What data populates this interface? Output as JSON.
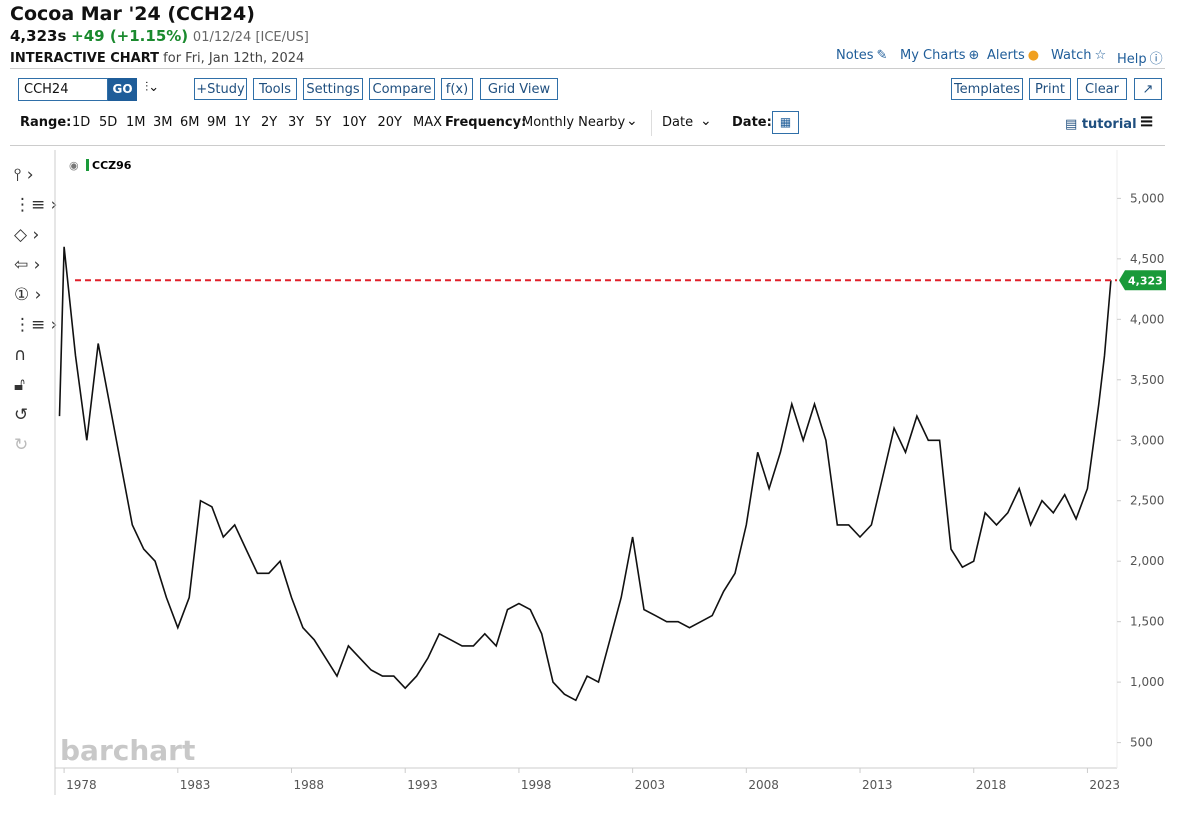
{
  "header": {
    "title": "Cocoa Mar '24 (CCH24)",
    "price": "4,323s",
    "change": "+49 (+1.15%)",
    "quote_info": "01/12/24 [ICE/US]",
    "chart_label": "INTERACTIVE CHART",
    "chart_date": "for Fri, Jan 12th, 2024"
  },
  "top_links": [
    "Notes",
    "My Charts",
    "Alerts",
    "Watch",
    "Help"
  ],
  "toolbar": {
    "symbol": "CCH24",
    "go": "GO",
    "buttons": [
      "+Study",
      "Tools",
      "Settings",
      "Compare",
      "f(x)",
      "Grid View"
    ],
    "right_buttons": [
      "Templates",
      "Print",
      "Clear"
    ]
  },
  "range": {
    "label": "Range:",
    "options": [
      "1D",
      "5D",
      "1M",
      "3M",
      "6M",
      "9M",
      "1Y",
      "2Y",
      "3Y",
      "5Y",
      "10Y",
      "20Y",
      "MAX"
    ]
  },
  "frequency": {
    "label": "Frequency:",
    "value": "Monthly Nearby"
  },
  "date_mode": "Date",
  "date_label": "Date:",
  "tutorial": "tutorial",
  "chart_data": {
    "type": "line",
    "watermark": "barchart",
    "series": [
      {
        "name": "CCZ96",
        "color": "#111111",
        "x": [
          1977.8,
          1978.0,
          1978.5,
          1979.0,
          1979.5,
          1980.0,
          1980.5,
          1981.0,
          1981.5,
          1982.0,
          1982.5,
          1983.0,
          1983.5,
          1984.0,
          1984.5,
          1985.0,
          1985.5,
          1986.0,
          1986.5,
          1987.0,
          1987.5,
          1988.0,
          1988.5,
          1989.0,
          1989.5,
          1990.0,
          1990.5,
          1991.0,
          1991.5,
          1992.0,
          1992.5,
          1993.0,
          1993.5,
          1994.0,
          1994.5,
          1995.0,
          1995.5,
          1996.0,
          1996.5,
          1997.0,
          1997.5,
          1998.0,
          1998.5,
          1999.0,
          1999.5,
          2000.0,
          2000.5,
          2001.0,
          2001.5,
          2002.0,
          2002.5,
          2003.0,
          2003.5,
          2004.0,
          2004.5,
          2005.0,
          2005.5,
          2006.0,
          2006.5,
          2007.0,
          2007.5,
          2008.0,
          2008.5,
          2009.0,
          2009.5,
          2010.0,
          2010.5,
          2011.0,
          2011.5,
          2012.0,
          2012.5,
          2013.0,
          2013.5,
          2014.0,
          2014.5,
          2015.0,
          2015.5,
          2016.0,
          2016.5,
          2017.0,
          2017.5,
          2018.0,
          2018.5,
          2019.0,
          2019.5,
          2020.0,
          2020.5,
          2021.0,
          2021.5,
          2022.0,
          2022.5,
          2023.0,
          2023.5,
          2023.75,
          2024.03
        ],
        "values": [
          3200,
          4600,
          3700,
          3000,
          3800,
          3300,
          2800,
          2300,
          2100,
          2000,
          1700,
          1450,
          1700,
          2500,
          2450,
          2200,
          2300,
          2100,
          1900,
          1900,
          2000,
          1700,
          1450,
          1350,
          1200,
          1050,
          1300,
          1200,
          1100,
          1050,
          1050,
          950,
          1050,
          1200,
          1400,
          1350,
          1300,
          1300,
          1400,
          1300,
          1600,
          1650,
          1600,
          1400,
          1000,
          900,
          850,
          1050,
          1000,
          1350,
          1700,
          2200,
          1600,
          1550,
          1500,
          1500,
          1450,
          1500,
          1550,
          1750,
          1900,
          2300,
          2900,
          2600,
          2900,
          3300,
          3000,
          3300,
          3000,
          2300,
          2300,
          2200,
          2300,
          2700,
          3100,
          2900,
          3200,
          3000,
          3000,
          2100,
          1950,
          2000,
          2400,
          2300,
          2400,
          2600,
          2300,
          2500,
          2400,
          2550,
          2350,
          2600,
          3300,
          3700,
          4323
        ]
      }
    ],
    "reference_line": {
      "value": 4323,
      "label": "4,323",
      "color": "#e0202a"
    },
    "xlim": [
      1977.6,
      2024.3
    ],
    "xticks": [
      1978,
      1983,
      1988,
      1993,
      1998,
      2003,
      2008,
      2013,
      2018,
      2023
    ],
    "ylim": [
      290,
      5400
    ],
    "yticks": [
      500,
      {
        "value": 1000,
        "label": "1,000"
      },
      {
        "value": 1500,
        "label": "1,500"
      },
      {
        "value": 2000,
        "label": "2,000"
      },
      {
        "value": 2500,
        "label": "2,500"
      },
      {
        "value": 3000,
        "label": "3,000"
      },
      {
        "value": 3500,
        "label": "3,500"
      },
      {
        "value": 4000,
        "label": "4,000"
      },
      {
        "value": 4500,
        "label": "4,500"
      },
      {
        "value": 5000,
        "label": "5,000"
      }
    ]
  }
}
